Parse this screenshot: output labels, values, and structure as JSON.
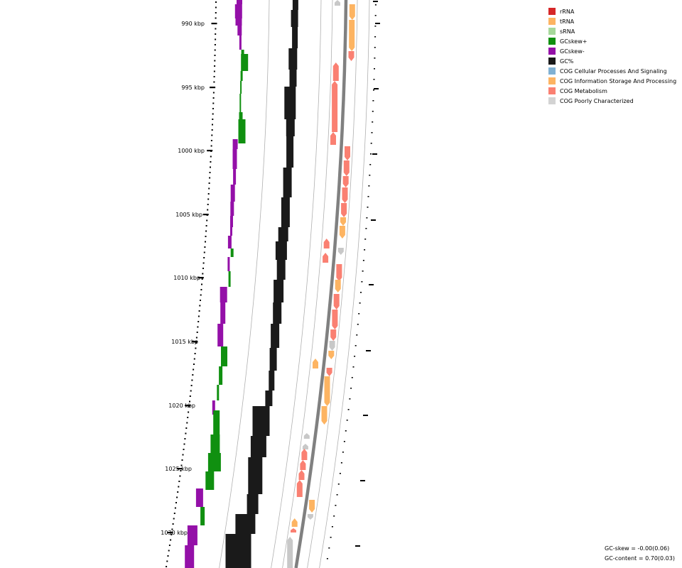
{
  "ticks": [
    {
      "label": "990 kbp"
    },
    {
      "label": "995 kbp"
    },
    {
      "label": "1000 kbp"
    },
    {
      "label": "1005 kbp"
    },
    {
      "label": "1010 kbp"
    },
    {
      "label": "1015 kbp"
    },
    {
      "label": "1020 kbp"
    },
    {
      "label": "1025 kbp"
    },
    {
      "label": "1030 kbp"
    }
  ],
  "legend": {
    "items": [
      {
        "label": "rRNA",
        "color": "#d62728"
      },
      {
        "label": "tRNA",
        "color": "#fdb462"
      },
      {
        "label": "sRNA",
        "color": "#a6d89b"
      },
      {
        "label": "GCskew+",
        "color": "#109010"
      },
      {
        "label": "GCskew-",
        "color": "#9410a8"
      },
      {
        "label": "GC%",
        "color": "#1a1a1a"
      },
      {
        "label": "COG Cellular Processes And Signaling",
        "color": "#80b1d3"
      },
      {
        "label": "COG Information Storage And Processing",
        "color": "#fdb462"
      },
      {
        "label": "COG Metabolism",
        "color": "#fa8072"
      },
      {
        "label": "COG Poorly Characterized",
        "color": "#d3d3d3"
      }
    ]
  },
  "stats": {
    "gc_skew": "GC-skew = -0.00(0.06)",
    "gc_content": "GC-content = 0.70(0.03)"
  },
  "colors": {
    "skew_pos": "#109010",
    "skew_neg": "#9410a8",
    "gc": "#1a1a1a",
    "metabolism": "#fa8072",
    "info": "#fdb462",
    "poorly": "#c8c8c8",
    "backbone": "#808080",
    "ring": "#b0b0b0"
  }
}
